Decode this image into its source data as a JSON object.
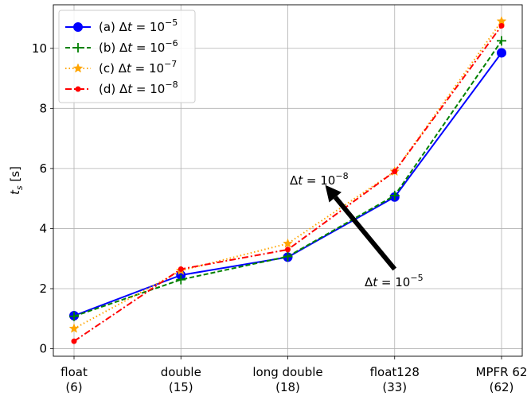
{
  "chart_data": {
    "type": "line",
    "categories": [
      {
        "line1": "float",
        "line2": "(6)"
      },
      {
        "line1": "double",
        "line2": "(15)"
      },
      {
        "line1": "long double",
        "line2": "(18)"
      },
      {
        "line1": "float128",
        "line2": "(33)"
      },
      {
        "line1": "MPFR 62",
        "line2": "(62)"
      }
    ],
    "ylabel": "t_s [s]",
    "ylabel_main": "t",
    "ylabel_sub": "s",
    "ylabel_unit": "[s]",
    "ylim": [
      -0.25,
      11.45
    ],
    "yticks": [
      0,
      2,
      4,
      6,
      8,
      10
    ],
    "grid": true,
    "legend_position": "top-left",
    "series": [
      {
        "name": "(a) Δt = 10^−5",
        "label_prefix": "(a) Δ",
        "exp": "−5",
        "color": "#0000ff",
        "dash": "",
        "marker": "circle",
        "values": [
          1.1,
          2.45,
          3.05,
          5.05,
          9.85
        ]
      },
      {
        "name": "(b) Δt = 10^−6",
        "label_prefix": "(b) Δ",
        "exp": "−6",
        "color": "#008000",
        "dash": "6,3",
        "marker": "plus",
        "values": [
          1.08,
          2.3,
          3.07,
          5.1,
          10.25
        ]
      },
      {
        "name": "(c) Δt = 10^−7",
        "label_prefix": "(c) Δ",
        "exp": "−7",
        "color": "#ffa500",
        "dash": "1.5,3",
        "marker": "star",
        "values": [
          0.67,
          2.6,
          3.5,
          5.9,
          10.9
        ]
      },
      {
        "name": "(d) Δt = 10^−8",
        "label_prefix": "(d) Δ",
        "exp": "−8",
        "color": "#ff0000",
        "dash": "8,3,2,3",
        "marker": "dot",
        "values": [
          0.25,
          2.65,
          3.3,
          5.9,
          10.75
        ]
      }
    ],
    "annotations": [
      {
        "prefix": "Δ",
        "exp": "−8",
        "anchor": "upper"
      },
      {
        "prefix": "Δ",
        "exp": "−5",
        "anchor": "lower"
      }
    ],
    "arrow": {
      "from": [
        3.0,
        2.65
      ],
      "to": [
        2.35,
        5.45
      ]
    }
  }
}
